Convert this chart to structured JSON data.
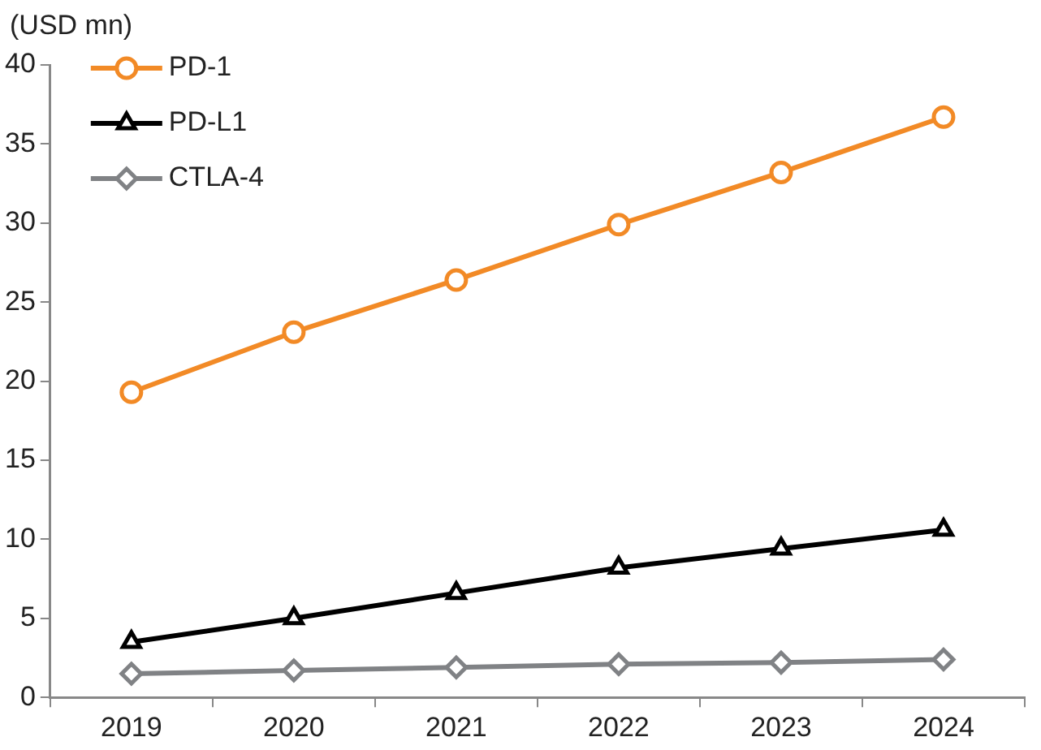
{
  "chart_data": {
    "type": "line",
    "ylabel": "(USD mn)",
    "categories": [
      "2019",
      "2020",
      "2021",
      "2022",
      "2023",
      "2024"
    ],
    "series": [
      {
        "name": "PD-1",
        "color": "#f28a26",
        "marker": "circle",
        "values": [
          19.3,
          23.1,
          26.4,
          29.9,
          33.2,
          36.7
        ]
      },
      {
        "name": "PD-L1",
        "color": "#000000",
        "marker": "triangle",
        "values": [
          3.5,
          5.0,
          6.6,
          8.2,
          9.4,
          10.6
        ]
      },
      {
        "name": "CTLA-4",
        "color": "#808285",
        "marker": "diamond",
        "values": [
          1.5,
          1.7,
          1.9,
          2.1,
          2.2,
          2.4
        ]
      }
    ],
    "ylim": [
      0,
      40
    ],
    "yticks": [
      0,
      5,
      10,
      15,
      20,
      25,
      30,
      35,
      40
    ],
    "grid": false,
    "legend": "top left"
  }
}
